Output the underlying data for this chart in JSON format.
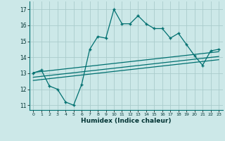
{
  "xlabel": "Humidex (Indice chaleur)",
  "bg_color": "#cce8e8",
  "grid_color": "#aacccc",
  "line_color": "#007070",
  "xlim": [
    -0.5,
    23.5
  ],
  "ylim": [
    10.7,
    17.5
  ],
  "xticks": [
    0,
    1,
    2,
    3,
    4,
    5,
    6,
    7,
    8,
    9,
    10,
    11,
    12,
    13,
    14,
    15,
    16,
    17,
    18,
    19,
    20,
    21,
    22,
    23
  ],
  "yticks": [
    11,
    12,
    13,
    14,
    15,
    16,
    17
  ],
  "main_x": [
    0,
    1,
    2,
    3,
    4,
    5,
    6,
    7,
    8,
    9,
    10,
    11,
    12,
    13,
    14,
    15,
    16,
    17,
    18,
    19,
    20,
    21,
    22,
    23
  ],
  "main_y": [
    13.0,
    13.2,
    12.2,
    12.0,
    11.2,
    11.0,
    12.3,
    14.5,
    15.3,
    15.2,
    17.0,
    16.1,
    16.1,
    16.6,
    16.1,
    15.8,
    15.8,
    15.2,
    15.5,
    14.8,
    14.1,
    13.5,
    14.4,
    14.5
  ],
  "line1_x": [
    0,
    23
  ],
  "line1_y": [
    13.05,
    14.35
  ],
  "line2_x": [
    0,
    23
  ],
  "line2_y": [
    12.75,
    14.05
  ],
  "line3_x": [
    0,
    23
  ],
  "line3_y": [
    12.55,
    13.85
  ]
}
